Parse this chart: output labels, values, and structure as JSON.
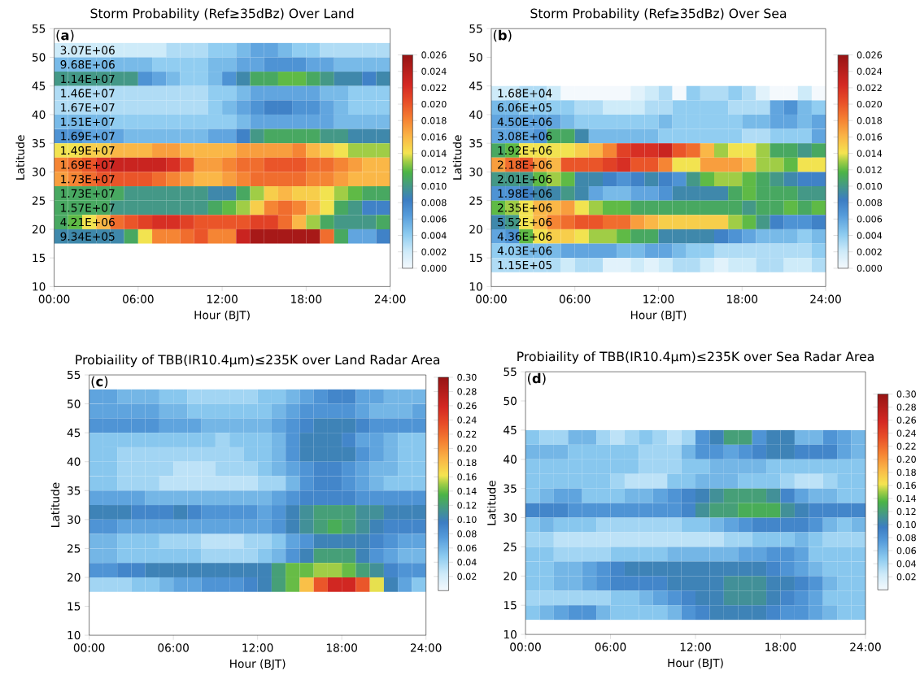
{
  "chart_data": [
    {
      "type": "heatmap",
      "title": "Storm Probability (Ref≥35dBz) Over Land",
      "xlabel": "Hour (BJT)",
      "ylabel": "Latitude",
      "annotations": [
        "(**a**)"
      ],
      "x": [
        0.5,
        1.5,
        2.5,
        3.5,
        4.5,
        5.5,
        6.5,
        7.5,
        8.5,
        9.5,
        10.5,
        11.5,
        12.5,
        13.5,
        14.5,
        15.5,
        16.5,
        17.5,
        18.5,
        19.5,
        20.5,
        21.5,
        22.5,
        23.5
      ],
      "y": [
        51.25,
        48.75,
        46.25,
        43.75,
        41.25,
        38.75,
        36.25,
        33.75,
        31.25,
        28.75,
        26.25,
        23.75,
        21.25,
        18.75
      ],
      "y2_categories": [
        "3.07E+06",
        "9.68E+06",
        "1.14E+07",
        "1.46E+07",
        "1.67E+07",
        "1.51E+07",
        "1.69E+07",
        "1.49E+07",
        "1.69E+07",
        "1.73E+07",
        "1.73E+07",
        "1.57E+07",
        "4.21E+06",
        "9.34E+05"
      ],
      "cells": [
        [
          0.002,
          0.002,
          0.002,
          0.002,
          0.002,
          0.002,
          0.002,
          0.002,
          0.003,
          0.003,
          0.003,
          0.004,
          0.004,
          0.005,
          0.006,
          0.006,
          0.005,
          0.004,
          0.004,
          0.003,
          0.003,
          0.003,
          0.003,
          0.003
        ],
        [
          0.005,
          0.005,
          0.005,
          0.005,
          0.005,
          0.005,
          0.005,
          0.004,
          0.004,
          0.004,
          0.004,
          0.005,
          0.005,
          0.006,
          0.006,
          0.007,
          0.007,
          0.007,
          0.006,
          0.006,
          0.005,
          0.005,
          0.005,
          0.005
        ],
        [
          0.01,
          0.01,
          0.01,
          0.01,
          0.01,
          0.01,
          0.007,
          0.006,
          0.005,
          0.004,
          0.004,
          0.005,
          0.007,
          0.009,
          0.011,
          0.011,
          0.012,
          0.012,
          0.011,
          0.01,
          0.009,
          0.009,
          0.008,
          0.009
        ],
        [
          0.003,
          0.003,
          0.003,
          0.003,
          0.003,
          0.003,
          0.003,
          0.003,
          0.003,
          0.003,
          0.003,
          0.004,
          0.004,
          0.005,
          0.006,
          0.006,
          0.006,
          0.006,
          0.006,
          0.005,
          0.005,
          0.004,
          0.004,
          0.004
        ],
        [
          0.003,
          0.003,
          0.003,
          0.003,
          0.003,
          0.003,
          0.003,
          0.003,
          0.003,
          0.003,
          0.003,
          0.004,
          0.005,
          0.006,
          0.007,
          0.008,
          0.008,
          0.007,
          0.007,
          0.006,
          0.005,
          0.004,
          0.004,
          0.004
        ],
        [
          0.005,
          0.005,
          0.005,
          0.005,
          0.004,
          0.004,
          0.004,
          0.004,
          0.004,
          0.004,
          0.004,
          0.004,
          0.004,
          0.005,
          0.006,
          0.006,
          0.006,
          0.006,
          0.006,
          0.006,
          0.005,
          0.005,
          0.005,
          0.005
        ],
        [
          0.007,
          0.007,
          0.006,
          0.006,
          0.006,
          0.005,
          0.005,
          0.005,
          0.005,
          0.005,
          0.005,
          0.006,
          0.006,
          0.008,
          0.01,
          0.011,
          0.011,
          0.011,
          0.011,
          0.01,
          0.01,
          0.009,
          0.009,
          0.009
        ],
        [
          0.014,
          0.014,
          0.015,
          0.015,
          0.016,
          0.016,
          0.016,
          0.017,
          0.017,
          0.016,
          0.016,
          0.016,
          0.016,
          0.017,
          0.017,
          0.017,
          0.017,
          0.018,
          0.016,
          0.015,
          0.014,
          0.013,
          0.013,
          0.013
        ],
        [
          0.018,
          0.019,
          0.02,
          0.022,
          0.023,
          0.023,
          0.023,
          0.023,
          0.022,
          0.02,
          0.017,
          0.017,
          0.018,
          0.019,
          0.019,
          0.02,
          0.02,
          0.02,
          0.019,
          0.019,
          0.018,
          0.017,
          0.016,
          0.016
        ],
        [
          0.017,
          0.018,
          0.019,
          0.02,
          0.02,
          0.02,
          0.02,
          0.019,
          0.018,
          0.017,
          0.016,
          0.016,
          0.017,
          0.018,
          0.019,
          0.019,
          0.019,
          0.019,
          0.018,
          0.018,
          0.017,
          0.016,
          0.016,
          0.016
        ],
        [
          0.011,
          0.011,
          0.011,
          0.011,
          0.011,
          0.01,
          0.01,
          0.01,
          0.01,
          0.01,
          0.01,
          0.009,
          0.009,
          0.011,
          0.013,
          0.015,
          0.016,
          0.015,
          0.015,
          0.014,
          0.013,
          0.012,
          0.011,
          0.011
        ],
        [
          0.011,
          0.011,
          0.011,
          0.011,
          0.01,
          0.01,
          0.01,
          0.01,
          0.01,
          0.01,
          0.01,
          0.011,
          0.012,
          0.013,
          0.015,
          0.018,
          0.019,
          0.018,
          0.016,
          0.014,
          0.011,
          0.01,
          0.008,
          0.008
        ],
        [
          0.011,
          0.012,
          0.014,
          0.016,
          0.019,
          0.02,
          0.021,
          0.022,
          0.022,
          0.021,
          0.02,
          0.02,
          0.02,
          0.02,
          0.021,
          0.021,
          0.019,
          0.016,
          0.013,
          0.011,
          0.01,
          0.01,
          0.01,
          0.011
        ],
        [
          0.009,
          0.009,
          0.009,
          0.009,
          0.009,
          0.011,
          0.014,
          0.018,
          0.018,
          0.019,
          0.02,
          0.018,
          0.018,
          0.023,
          0.025,
          0.025,
          0.025,
          0.025,
          0.025,
          0.019,
          0.011,
          0.006,
          0.006,
          0.008
        ]
      ],
      "clim": [
        0,
        0.026
      ],
      "cticks": [
        {
          "value": 0,
          "label": "0.000"
        },
        {
          "value": 0.002,
          "label": "0.002"
        },
        {
          "value": 0.004,
          "label": "0.004"
        },
        {
          "value": 0.006,
          "label": "0.006"
        },
        {
          "value": 0.008,
          "label": "0.008"
        },
        {
          "value": 0.01,
          "label": "0.010"
        },
        {
          "value": 0.012,
          "label": "0.012"
        },
        {
          "value": 0.014,
          "label": "0.014"
        },
        {
          "value": 0.016,
          "label": "0.016"
        },
        {
          "value": 0.018,
          "label": "0.018"
        },
        {
          "value": 0.02,
          "label": "0.020"
        },
        {
          "value": 0.022,
          "label": "0.022"
        },
        {
          "value": 0.024,
          "label": "0.024"
        },
        {
          "value": 0.026,
          "label": "0.026"
        }
      ],
      "xlim": [
        0,
        24
      ],
      "xticks": [
        {
          "value": 0,
          "label": "00:00"
        },
        {
          "value": 6,
          "label": "06:00"
        },
        {
          "value": 12,
          "label": "12:00"
        },
        {
          "value": 18,
          "label": "18:00"
        },
        {
          "value": 24,
          "label": "24:00"
        }
      ],
      "ylim": [
        10,
        55
      ],
      "yticks": [
        10,
        15,
        20,
        25,
        30,
        35,
        40,
        45,
        50,
        55
      ]
    },
    {
      "type": "heatmap",
      "title": "Storm Probability (Ref≥35dBz) Over Sea",
      "xlabel": "Hour (BJT)",
      "ylabel": "Latitude",
      "annotations": [
        "(**b**)"
      ],
      "x": [
        0.5,
        1.5,
        2.5,
        3.5,
        4.5,
        5.5,
        6.5,
        7.5,
        8.5,
        9.5,
        10.5,
        11.5,
        12.5,
        13.5,
        14.5,
        15.5,
        16.5,
        17.5,
        18.5,
        19.5,
        20.5,
        21.5,
        22.5,
        23.5
      ],
      "y": [
        43.75,
        41.25,
        38.75,
        36.25,
        33.75,
        31.25,
        28.75,
        26.25,
        23.75,
        21.25,
        18.75,
        16.25,
        13.75
      ],
      "y2_categories": [
        "1.68E+04",
        "6.06E+05",
        "4.50E+06",
        "3.08E+06",
        "1.92E+06",
        "2.18E+06",
        "2.01E+06",
        "1.98E+06",
        "2.35E+06",
        "5.52E+06",
        "4.36E+06",
        "4.03E+06",
        "1.15E+05"
      ],
      "cells": [
        [
          0.002,
          0.002,
          0.003,
          0.003,
          0.002,
          0.0,
          0.0,
          0.0,
          0.0,
          0.0,
          0.001,
          0.002,
          0.003,
          0.0,
          0.004,
          0.003,
          0.003,
          0.004,
          0.003,
          0.001,
          0.0,
          0.0,
          0.002,
          0.0
        ],
        [
          0.005,
          0.005,
          0.004,
          0.004,
          0.004,
          0.004,
          0.003,
          0.003,
          0.002,
          0.002,
          0.002,
          0.003,
          0.003,
          0.004,
          0.004,
          0.004,
          0.004,
          0.003,
          0.003,
          0.003,
          0.006,
          0.007,
          0.005,
          0.004
        ],
        [
          0.006,
          0.006,
          0.006,
          0.006,
          0.006,
          0.005,
          0.004,
          0.004,
          0.004,
          0.004,
          0.004,
          0.004,
          0.005,
          0.004,
          0.004,
          0.004,
          0.004,
          0.004,
          0.005,
          0.005,
          0.006,
          0.006,
          0.005,
          0.006
        ],
        [
          0.006,
          0.006,
          0.006,
          0.007,
          0.011,
          0.011,
          0.009,
          0.005,
          0.005,
          0.005,
          0.005,
          0.005,
          0.004,
          0.004,
          0.004,
          0.004,
          0.004,
          0.004,
          0.003,
          0.003,
          0.004,
          0.004,
          0.004,
          0.006
        ],
        [
          0.011,
          0.012,
          0.014,
          0.014,
          0.014,
          0.014,
          0.015,
          0.016,
          0.018,
          0.021,
          0.022,
          0.022,
          0.023,
          0.02,
          0.019,
          0.016,
          0.013,
          0.014,
          0.014,
          0.013,
          0.011,
          0.011,
          0.01,
          0.011
        ],
        [
          0.017,
          0.019,
          0.02,
          0.017,
          0.016,
          0.02,
          0.02,
          0.02,
          0.021,
          0.022,
          0.02,
          0.02,
          0.018,
          0.014,
          0.014,
          0.017,
          0.017,
          0.017,
          0.016,
          0.013,
          0.013,
          0.012,
          0.014,
          0.014
        ],
        [
          0.01,
          0.01,
          0.01,
          0.012,
          0.013,
          0.012,
          0.009,
          0.009,
          0.008,
          0.007,
          0.008,
          0.009,
          0.008,
          0.007,
          0.01,
          0.012,
          0.013,
          0.013,
          0.012,
          0.011,
          0.01,
          0.009,
          0.008,
          0.008
        ],
        [
          0.007,
          0.007,
          0.008,
          0.009,
          0.009,
          0.01,
          0.009,
          0.006,
          0.005,
          0.005,
          0.006,
          0.006,
          0.007,
          0.009,
          0.009,
          0.009,
          0.009,
          0.011,
          0.012,
          0.011,
          0.011,
          0.011,
          0.01,
          0.01
        ],
        [
          0.012,
          0.013,
          0.014,
          0.016,
          0.016,
          0.017,
          0.014,
          0.013,
          0.012,
          0.012,
          0.011,
          0.011,
          0.011,
          0.011,
          0.011,
          0.011,
          0.011,
          0.011,
          0.01,
          0.011,
          0.011,
          0.012,
          0.011,
          0.012
        ],
        [
          0.009,
          0.01,
          0.014,
          0.016,
          0.018,
          0.019,
          0.02,
          0.02,
          0.019,
          0.019,
          0.017,
          0.016,
          0.015,
          0.015,
          0.015,
          0.015,
          0.015,
          0.013,
          0.012,
          0.01,
          0.008,
          0.007,
          0.007,
          0.008
        ],
        [
          0.006,
          0.007,
          0.012,
          0.014,
          0.015,
          0.015,
          0.014,
          0.013,
          0.013,
          0.012,
          0.011,
          0.011,
          0.009,
          0.009,
          0.009,
          0.009,
          0.008,
          0.007,
          0.006,
          0.005,
          0.005,
          0.005,
          0.004,
          0.005
        ],
        [
          0.004,
          0.004,
          0.005,
          0.005,
          0.005,
          0.006,
          0.006,
          0.006,
          0.006,
          0.005,
          0.005,
          0.006,
          0.006,
          0.005,
          0.004,
          0.004,
          0.003,
          0.003,
          0.003,
          0.003,
          0.003,
          0.003,
          0.003,
          0.004
        ],
        [
          0.003,
          0.003,
          0.003,
          0.003,
          0.003,
          0.002,
          0.003,
          0.003,
          0.001,
          0.001,
          0.002,
          0.001,
          0.002,
          0.003,
          0.003,
          0.002,
          0.001,
          0.002,
          0.002,
          0.003,
          0.003,
          0.002,
          0.002,
          0.003
        ]
      ],
      "clim": [
        0,
        0.026
      ],
      "cticks": [
        {
          "value": 0,
          "label": "0.000"
        },
        {
          "value": 0.002,
          "label": "0.002"
        },
        {
          "value": 0.004,
          "label": "0.004"
        },
        {
          "value": 0.006,
          "label": "0.006"
        },
        {
          "value": 0.008,
          "label": "0.008"
        },
        {
          "value": 0.01,
          "label": "0.010"
        },
        {
          "value": 0.012,
          "label": "0.012"
        },
        {
          "value": 0.014,
          "label": "0.014"
        },
        {
          "value": 0.016,
          "label": "0.016"
        },
        {
          "value": 0.018,
          "label": "0.018"
        },
        {
          "value": 0.02,
          "label": "0.020"
        },
        {
          "value": 0.022,
          "label": "0.022"
        },
        {
          "value": 0.024,
          "label": "0.024"
        },
        {
          "value": 0.026,
          "label": "0.026"
        }
      ],
      "xlim": [
        0,
        24
      ],
      "xticks": [
        {
          "value": 0,
          "label": "00:00"
        },
        {
          "value": 6,
          "label": "06:00"
        },
        {
          "value": 12,
          "label": "12:00"
        },
        {
          "value": 18,
          "label": "18:00"
        },
        {
          "value": 24,
          "label": "24:00"
        }
      ],
      "ylim": [
        10,
        55
      ],
      "yticks": [
        10,
        15,
        20,
        25,
        30,
        35,
        40,
        45,
        50,
        55
      ]
    },
    {
      "type": "heatmap",
      "title": "Probiaility of TBB(IR10.4μm)≤235K over Land Radar Area",
      "xlabel": "Hour (BJT)",
      "ylabel": "Latitude",
      "annotations": [
        "(**c**)"
      ],
      "x": [
        0.5,
        1.5,
        2.5,
        3.5,
        4.5,
        5.5,
        6.5,
        7.5,
        8.5,
        9.5,
        10.5,
        11.5,
        12.5,
        13.5,
        14.5,
        15.5,
        16.5,
        17.5,
        18.5,
        19.5,
        20.5,
        21.5,
        22.5,
        23.5
      ],
      "y": [
        51.25,
        48.75,
        46.25,
        43.75,
        41.25,
        38.75,
        36.25,
        33.75,
        31.25,
        28.75,
        26.25,
        23.75,
        21.25,
        18.75
      ],
      "cells": [
        [
          0.07,
          0.07,
          0.06,
          0.06,
          0.06,
          0.05,
          0.05,
          0.04,
          0.04,
          0.04,
          0.04,
          0.04,
          0.05,
          0.05,
          0.06,
          0.07,
          0.08,
          0.09,
          0.09,
          0.07,
          0.07,
          0.06,
          0.06,
          0.06
        ],
        [
          0.07,
          0.07,
          0.07,
          0.07,
          0.07,
          0.06,
          0.06,
          0.05,
          0.05,
          0.05,
          0.05,
          0.05,
          0.05,
          0.06,
          0.07,
          0.08,
          0.08,
          0.08,
          0.08,
          0.07,
          0.06,
          0.06,
          0.06,
          0.07
        ],
        [
          0.08,
          0.08,
          0.08,
          0.08,
          0.08,
          0.07,
          0.07,
          0.07,
          0.06,
          0.06,
          0.06,
          0.06,
          0.06,
          0.07,
          0.08,
          0.09,
          0.1,
          0.1,
          0.1,
          0.09,
          0.08,
          0.08,
          0.08,
          0.08
        ],
        [
          0.05,
          0.05,
          0.05,
          0.05,
          0.05,
          0.05,
          0.05,
          0.05,
          0.05,
          0.04,
          0.05,
          0.05,
          0.05,
          0.06,
          0.08,
          0.1,
          0.1,
          0.1,
          0.09,
          0.07,
          0.07,
          0.06,
          0.05,
          0.05
        ],
        [
          0.05,
          0.05,
          0.04,
          0.04,
          0.04,
          0.04,
          0.04,
          0.04,
          0.04,
          0.04,
          0.04,
          0.05,
          0.05,
          0.06,
          0.08,
          0.1,
          0.1,
          0.1,
          0.1,
          0.08,
          0.07,
          0.06,
          0.05,
          0.05
        ],
        [
          0.05,
          0.05,
          0.04,
          0.04,
          0.04,
          0.04,
          0.03,
          0.03,
          0.03,
          0.04,
          0.04,
          0.04,
          0.05,
          0.06,
          0.07,
          0.08,
          0.09,
          0.09,
          0.08,
          0.07,
          0.06,
          0.06,
          0.05,
          0.05
        ],
        [
          0.05,
          0.05,
          0.04,
          0.04,
          0.04,
          0.03,
          0.03,
          0.03,
          0.03,
          0.03,
          0.03,
          0.03,
          0.04,
          0.04,
          0.06,
          0.08,
          0.09,
          0.09,
          0.08,
          0.07,
          0.06,
          0.05,
          0.05,
          0.05
        ],
        [
          0.07,
          0.07,
          0.07,
          0.07,
          0.06,
          0.06,
          0.06,
          0.06,
          0.06,
          0.06,
          0.06,
          0.06,
          0.06,
          0.07,
          0.08,
          0.09,
          0.09,
          0.09,
          0.09,
          0.08,
          0.08,
          0.08,
          0.08,
          0.08
        ],
        [
          0.1,
          0.1,
          0.1,
          0.09,
          0.09,
          0.09,
          0.1,
          0.09,
          0.08,
          0.08,
          0.08,
          0.08,
          0.07,
          0.08,
          0.1,
          0.11,
          0.12,
          0.12,
          0.12,
          0.11,
          0.11,
          0.1,
          0.1,
          0.1
        ],
        [
          0.08,
          0.08,
          0.07,
          0.07,
          0.07,
          0.07,
          0.07,
          0.07,
          0.07,
          0.07,
          0.07,
          0.07,
          0.07,
          0.08,
          0.1,
          0.11,
          0.12,
          0.13,
          0.12,
          0.11,
          0.1,
          0.09,
          0.09,
          0.09
        ],
        [
          0.06,
          0.06,
          0.05,
          0.05,
          0.05,
          0.04,
          0.04,
          0.04,
          0.03,
          0.03,
          0.03,
          0.04,
          0.04,
          0.05,
          0.07,
          0.08,
          0.1,
          0.1,
          0.1,
          0.1,
          0.09,
          0.08,
          0.07,
          0.07
        ],
        [
          0.06,
          0.06,
          0.05,
          0.05,
          0.05,
          0.05,
          0.05,
          0.05,
          0.04,
          0.04,
          0.04,
          0.04,
          0.05,
          0.06,
          0.08,
          0.1,
          0.12,
          0.12,
          0.12,
          0.1,
          0.08,
          0.07,
          0.06,
          0.06
        ],
        [
          0.08,
          0.08,
          0.09,
          0.09,
          0.1,
          0.1,
          0.1,
          0.1,
          0.1,
          0.1,
          0.1,
          0.1,
          0.1,
          0.12,
          0.14,
          0.14,
          0.15,
          0.15,
          0.14,
          0.12,
          0.11,
          0.09,
          0.08,
          0.08
        ],
        [
          0.04,
          0.04,
          0.04,
          0.05,
          0.05,
          0.06,
          0.07,
          0.07,
          0.08,
          0.08,
          0.08,
          0.09,
          0.1,
          0.12,
          0.14,
          0.18,
          0.23,
          0.26,
          0.26,
          0.23,
          0.16,
          0.1,
          0.07,
          0.05
        ]
      ],
      "clim": [
        0,
        0.3
      ],
      "cticks": [
        {
          "value": 0.02,
          "label": "0.02"
        },
        {
          "value": 0.04,
          "label": "0.04"
        },
        {
          "value": 0.06,
          "label": "0.06"
        },
        {
          "value": 0.08,
          "label": "0.08"
        },
        {
          "value": 0.1,
          "label": "0.10"
        },
        {
          "value": 0.12,
          "label": "0.12"
        },
        {
          "value": 0.14,
          "label": "0.14"
        },
        {
          "value": 0.16,
          "label": "0.16"
        },
        {
          "value": 0.18,
          "label": "0.18"
        },
        {
          "value": 0.2,
          "label": "0.20"
        },
        {
          "value": 0.22,
          "label": "0.22"
        },
        {
          "value": 0.24,
          "label": "0.24"
        },
        {
          "value": 0.26,
          "label": "0.26"
        },
        {
          "value": 0.28,
          "label": "0.28"
        },
        {
          "value": 0.3,
          "label": "0.30"
        }
      ],
      "xlim": [
        0,
        24
      ],
      "xticks": [
        {
          "value": 0,
          "label": "00:00"
        },
        {
          "value": 6,
          "label": "06:00"
        },
        {
          "value": 12,
          "label": "12:00"
        },
        {
          "value": 18,
          "label": "18:00"
        },
        {
          "value": 24,
          "label": "24:00"
        }
      ],
      "ylim": [
        10,
        55
      ],
      "yticks": [
        10,
        15,
        20,
        25,
        30,
        35,
        40,
        45,
        50,
        55
      ]
    },
    {
      "type": "heatmap",
      "title": "Probiaility of TBB(IR10.4μm)≤235K over Sea Radar Area",
      "xlabel": "Hour (BJT)",
      "ylabel": "Latitude",
      "annotations": [
        "(**d**)"
      ],
      "x": [
        0.5,
        1.5,
        2.5,
        3.5,
        4.5,
        5.5,
        6.5,
        7.5,
        8.5,
        9.5,
        10.5,
        11.5,
        12.5,
        13.5,
        14.5,
        15.5,
        16.5,
        17.5,
        18.5,
        19.5,
        20.5,
        21.5,
        22.5,
        23.5
      ],
      "y": [
        43.75,
        41.25,
        38.75,
        36.25,
        33.75,
        31.25,
        28.75,
        26.25,
        23.75,
        21.25,
        18.75,
        16.25,
        13.75
      ],
      "cells": [
        [
          0.05,
          0.04,
          0.04,
          0.06,
          0.06,
          0.04,
          0.03,
          0.04,
          0.05,
          0.04,
          0.03,
          0.04,
          0.08,
          0.1,
          0.12,
          0.12,
          0.08,
          0.1,
          0.1,
          0.06,
          0.06,
          0.08,
          0.07,
          0.06
        ],
        [
          0.06,
          0.06,
          0.06,
          0.05,
          0.05,
          0.05,
          0.05,
          0.05,
          0.04,
          0.04,
          0.04,
          0.06,
          0.08,
          0.08,
          0.07,
          0.08,
          0.09,
          0.1,
          0.1,
          0.09,
          0.09,
          0.09,
          0.07,
          0.06
        ],
        [
          0.05,
          0.05,
          0.05,
          0.05,
          0.05,
          0.05,
          0.05,
          0.05,
          0.04,
          0.04,
          0.04,
          0.05,
          0.05,
          0.06,
          0.06,
          0.06,
          0.06,
          0.05,
          0.05,
          0.05,
          0.05,
          0.05,
          0.05,
          0.05
        ],
        [
          0.05,
          0.05,
          0.05,
          0.05,
          0.05,
          0.05,
          0.04,
          0.03,
          0.03,
          0.03,
          0.05,
          0.05,
          0.06,
          0.06,
          0.06,
          0.05,
          0.05,
          0.05,
          0.04,
          0.03,
          0.03,
          0.04,
          0.05,
          0.05
        ],
        [
          0.05,
          0.06,
          0.07,
          0.07,
          0.05,
          0.05,
          0.05,
          0.06,
          0.06,
          0.07,
          0.08,
          0.09,
          0.1,
          0.11,
          0.12,
          0.12,
          0.12,
          0.11,
          0.09,
          0.07,
          0.06,
          0.06,
          0.05,
          0.05
        ],
        [
          0.09,
          0.09,
          0.09,
          0.08,
          0.08,
          0.08,
          0.08,
          0.08,
          0.08,
          0.08,
          0.08,
          0.09,
          0.11,
          0.12,
          0.12,
          0.13,
          0.13,
          0.13,
          0.11,
          0.1,
          0.09,
          0.09,
          0.09,
          0.09
        ],
        [
          0.05,
          0.06,
          0.05,
          0.05,
          0.05,
          0.04,
          0.04,
          0.04,
          0.04,
          0.04,
          0.04,
          0.05,
          0.05,
          0.06,
          0.07,
          0.08,
          0.09,
          0.09,
          0.09,
          0.09,
          0.08,
          0.06,
          0.05,
          0.06
        ],
        [
          0.04,
          0.04,
          0.03,
          0.03,
          0.03,
          0.03,
          0.03,
          0.03,
          0.03,
          0.03,
          0.03,
          0.03,
          0.03,
          0.03,
          0.04,
          0.04,
          0.05,
          0.05,
          0.05,
          0.06,
          0.05,
          0.04,
          0.04,
          0.04
        ],
        [
          0.05,
          0.05,
          0.04,
          0.04,
          0.04,
          0.04,
          0.05,
          0.05,
          0.05,
          0.05,
          0.06,
          0.06,
          0.06,
          0.06,
          0.06,
          0.07,
          0.07,
          0.08,
          0.08,
          0.07,
          0.05,
          0.05,
          0.05,
          0.05
        ],
        [
          0.05,
          0.05,
          0.06,
          0.06,
          0.07,
          0.08,
          0.09,
          0.1,
          0.1,
          0.1,
          0.1,
          0.1,
          0.1,
          0.1,
          0.1,
          0.1,
          0.1,
          0.09,
          0.08,
          0.07,
          0.06,
          0.05,
          0.05,
          0.05
        ],
        [
          0.05,
          0.05,
          0.06,
          0.06,
          0.07,
          0.08,
          0.09,
          0.09,
          0.09,
          0.09,
          0.1,
          0.1,
          0.1,
          0.1,
          0.11,
          0.11,
          0.11,
          0.1,
          0.1,
          0.09,
          0.08,
          0.06,
          0.05,
          0.05
        ],
        [
          0.04,
          0.04,
          0.04,
          0.04,
          0.04,
          0.04,
          0.05,
          0.05,
          0.06,
          0.07,
          0.08,
          0.09,
          0.1,
          0.1,
          0.11,
          0.11,
          0.11,
          0.1,
          0.09,
          0.08,
          0.07,
          0.05,
          0.05,
          0.05
        ],
        [
          0.05,
          0.06,
          0.07,
          0.08,
          0.08,
          0.06,
          0.05,
          0.05,
          0.05,
          0.05,
          0.06,
          0.08,
          0.09,
          0.1,
          0.1,
          0.1,
          0.1,
          0.09,
          0.08,
          0.08,
          0.07,
          0.06,
          0.05,
          0.05
        ]
      ],
      "clim": [
        0,
        0.3
      ],
      "cticks": [
        {
          "value": 0.02,
          "label": "0.02"
        },
        {
          "value": 0.04,
          "label": "0.04"
        },
        {
          "value": 0.06,
          "label": "0.06"
        },
        {
          "value": 0.08,
          "label": "0.08"
        },
        {
          "value": 0.1,
          "label": "0.10"
        },
        {
          "value": 0.12,
          "label": "0.12"
        },
        {
          "value": 0.14,
          "label": "0.14"
        },
        {
          "value": 0.16,
          "label": "0.16"
        },
        {
          "value": 0.18,
          "label": "0.18"
        },
        {
          "value": 0.2,
          "label": "0.20"
        },
        {
          "value": 0.22,
          "label": "0.22"
        },
        {
          "value": 0.24,
          "label": "0.24"
        },
        {
          "value": 0.26,
          "label": "0.26"
        },
        {
          "value": 0.28,
          "label": "0.28"
        },
        {
          "value": 0.3,
          "label": "0.30"
        }
      ],
      "xlim": [
        0,
        24
      ],
      "xticks": [
        {
          "value": 0,
          "label": "00:00"
        },
        {
          "value": 6,
          "label": "06:00"
        },
        {
          "value": 12,
          "label": "12:00"
        },
        {
          "value": 18,
          "label": "18:00"
        },
        {
          "value": 24,
          "label": "24:00"
        }
      ],
      "ylim": [
        10,
        55
      ],
      "yticks": [
        10,
        15,
        20,
        25,
        30,
        35,
        40,
        45,
        50,
        55
      ]
    }
  ]
}
